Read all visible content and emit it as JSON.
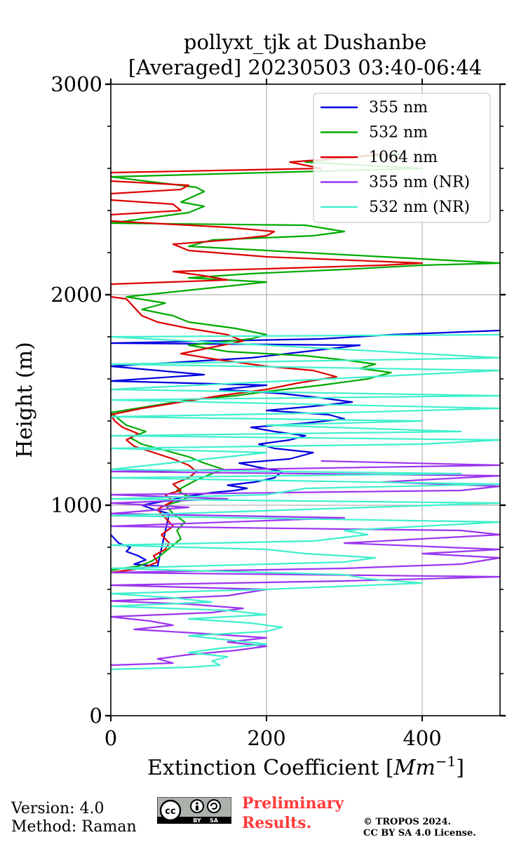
{
  "chart_data": {
    "type": "line",
    "title_line1": "pollyxt_tjk at Dushanbe",
    "title_line2": "[Averaged] 20230503 03:40-06:44",
    "xlabel": "Extinction Coefficient [",
    "xlabel_unit": "Mm",
    "xlabel_exp": "−1",
    "xlabel_end": "]",
    "ylabel": "Height (m)",
    "xlim": [
      0,
      500
    ],
    "ylim": [
      0,
      3000
    ],
    "x_ticks": [
      0,
      200,
      400
    ],
    "x_tick_labels": [
      "0",
      "200",
      "400"
    ],
    "y_ticks": [
      0,
      1000,
      2000,
      3000
    ],
    "y_tick_labels": [
      "0",
      "1000",
      "2000",
      "3000"
    ],
    "grid": true,
    "legend_position": "top-right",
    "series": [
      {
        "name": "355 nm",
        "color": "#0000e0",
        "points": [
          [
            0,
            860
          ],
          [
            10,
            820
          ],
          [
            25,
            800
          ],
          [
            20,
            780
          ],
          [
            35,
            760
          ],
          [
            45,
            740
          ],
          [
            30,
            720
          ],
          [
            60,
            710
          ],
          [
            75,
            960
          ],
          [
            55,
            980
          ],
          [
            40,
            1000
          ],
          [
            70,
            1020
          ],
          [
            95,
            1040
          ],
          [
            130,
            1060
          ],
          [
            160,
            1070
          ],
          [
            175,
            1080
          ],
          [
            150,
            1095
          ],
          [
            185,
            1110
          ],
          [
            210,
            1130
          ],
          [
            220,
            1160
          ],
          [
            190,
            1180
          ],
          [
            165,
            1200
          ],
          [
            230,
            1220
          ],
          [
            260,
            1250
          ],
          [
            210,
            1270
          ],
          [
            190,
            1290
          ],
          [
            230,
            1310
          ],
          [
            250,
            1330
          ],
          [
            210,
            1350
          ],
          [
            180,
            1370
          ],
          [
            250,
            1390
          ],
          [
            300,
            1410
          ],
          [
            280,
            1430
          ],
          [
            200,
            1450
          ],
          [
            260,
            1470
          ],
          [
            310,
            1490
          ],
          [
            270,
            1510
          ],
          [
            220,
            1530
          ],
          [
            140,
            1550
          ],
          [
            200,
            1570
          ],
          [
            0,
            1590
          ],
          [
            120,
            1620
          ],
          [
            0,
            1660
          ],
          [
            180,
            1700
          ],
          [
            250,
            1730
          ],
          [
            320,
            1760
          ],
          [
            0,
            1770
          ],
          [
            270,
            1790
          ],
          [
            360,
            1810
          ],
          [
            500,
            1830
          ]
        ]
      },
      {
        "name": "532 nm",
        "color": "#00aa00",
        "points": [
          [
            0,
            690
          ],
          [
            15,
            700
          ],
          [
            35,
            710
          ],
          [
            50,
            730
          ],
          [
            60,
            750
          ],
          [
            70,
            780
          ],
          [
            80,
            810
          ],
          [
            90,
            840
          ],
          [
            85,
            880
          ],
          [
            95,
            920
          ],
          [
            80,
            960
          ],
          [
            70,
            1000
          ],
          [
            90,
            1020
          ],
          [
            100,
            1040
          ],
          [
            85,
            1070
          ],
          [
            95,
            1090
          ],
          [
            110,
            1120
          ],
          [
            130,
            1150
          ],
          [
            145,
            1170
          ],
          [
            120,
            1200
          ],
          [
            100,
            1230
          ],
          [
            70,
            1260
          ],
          [
            40,
            1290
          ],
          [
            25,
            1320
          ],
          [
            45,
            1350
          ],
          [
            20,
            1380
          ],
          [
            10,
            1410
          ],
          [
            0,
            1440
          ],
          [
            50,
            1470
          ],
          [
            100,
            1500
          ],
          [
            160,
            1520
          ],
          [
            200,
            1540
          ],
          [
            270,
            1570
          ],
          [
            330,
            1600
          ],
          [
            360,
            1630
          ],
          [
            320,
            1650
          ],
          [
            340,
            1670
          ],
          [
            300,
            1690
          ],
          [
            250,
            1710
          ],
          [
            150,
            1730
          ],
          [
            100,
            1760
          ],
          [
            180,
            1790
          ],
          [
            200,
            1810
          ],
          [
            160,
            1840
          ],
          [
            100,
            1870
          ],
          [
            80,
            1900
          ],
          [
            40,
            1930
          ],
          [
            70,
            1960
          ],
          [
            20,
            1990
          ],
          [
            200,
            2060
          ],
          [
            100,
            2080
          ],
          [
            180,
            2100
          ],
          [
            300,
            2120
          ],
          [
            400,
            2140
          ],
          [
            500,
            2150
          ],
          [
            350,
            2180
          ],
          [
            200,
            2210
          ],
          [
            100,
            2230
          ],
          [
            130,
            2260
          ],
          [
            260,
            2280
          ],
          [
            300,
            2300
          ],
          [
            250,
            2330
          ],
          [
            0,
            2340
          ],
          [
            100,
            2390
          ],
          [
            120,
            2420
          ],
          [
            90,
            2440
          ],
          [
            120,
            2490
          ],
          [
            110,
            2510
          ],
          [
            0,
            2560
          ],
          [
            400,
            2600
          ],
          [
            250,
            2630
          ],
          [
            300,
            2650
          ],
          [
            380,
            2670
          ]
        ]
      },
      {
        "name": "1064 nm",
        "color": "#dd0000",
        "points": [
          [
            0,
            680
          ],
          [
            20,
            690
          ],
          [
            40,
            700
          ],
          [
            60,
            730
          ],
          [
            55,
            760
          ],
          [
            70,
            790
          ],
          [
            75,
            820
          ],
          [
            65,
            860
          ],
          [
            80,
            900
          ],
          [
            70,
            940
          ],
          [
            60,
            980
          ],
          [
            80,
            1020
          ],
          [
            70,
            1050
          ],
          [
            90,
            1070
          ],
          [
            80,
            1100
          ],
          [
            100,
            1130
          ],
          [
            110,
            1160
          ],
          [
            100,
            1190
          ],
          [
            80,
            1220
          ],
          [
            55,
            1250
          ],
          [
            30,
            1280
          ],
          [
            20,
            1310
          ],
          [
            35,
            1340
          ],
          [
            15,
            1370
          ],
          [
            5,
            1400
          ],
          [
            0,
            1430
          ],
          [
            40,
            1460
          ],
          [
            90,
            1490
          ],
          [
            140,
            1520
          ],
          [
            200,
            1550
          ],
          [
            240,
            1580
          ],
          [
            290,
            1610
          ],
          [
            260,
            1640
          ],
          [
            200,
            1660
          ],
          [
            140,
            1690
          ],
          [
            90,
            1720
          ],
          [
            130,
            1750
          ],
          [
            170,
            1780
          ],
          [
            150,
            1810
          ],
          [
            100,
            1840
          ],
          [
            60,
            1870
          ],
          [
            40,
            1900
          ],
          [
            30,
            1940
          ],
          [
            20,
            1980
          ],
          [
            0,
            1990
          ],
          [
            0,
            2050
          ],
          [
            150,
            2070
          ],
          [
            120,
            2090
          ],
          [
            80,
            2110
          ],
          [
            350,
            2140
          ],
          [
            400,
            2150
          ],
          [
            200,
            2180
          ],
          [
            100,
            2210
          ],
          [
            80,
            2240
          ],
          [
            150,
            2260
          ],
          [
            200,
            2280
          ],
          [
            210,
            2300
          ],
          [
            150,
            2320
          ],
          [
            0,
            2350
          ],
          [
            0,
            2380
          ],
          [
            90,
            2400
          ],
          [
            80,
            2430
          ],
          [
            0,
            2450
          ],
          [
            0,
            2480
          ],
          [
            90,
            2500
          ],
          [
            100,
            2520
          ],
          [
            0,
            2540
          ],
          [
            0,
            2580
          ],
          [
            270,
            2600
          ],
          [
            230,
            2630
          ],
          [
            300,
            2650
          ],
          [
            350,
            2670
          ]
        ]
      },
      {
        "name": "355 nm (NR)",
        "color": "#9b35f0",
        "points": [
          [
            0,
            240
          ],
          [
            80,
            250
          ],
          [
            60,
            270
          ],
          [
            100,
            290
          ],
          [
            160,
            310
          ],
          [
            200,
            330
          ],
          [
            150,
            350
          ],
          [
            200,
            370
          ],
          [
            120,
            390
          ],
          [
            30,
            410
          ],
          [
            80,
            430
          ],
          [
            50,
            450
          ],
          [
            0,
            470
          ],
          [
            130,
            490
          ],
          [
            170,
            510
          ],
          [
            100,
            530
          ],
          [
            0,
            545
          ],
          [
            150,
            570
          ],
          [
            200,
            600
          ],
          [
            0,
            620
          ],
          [
            300,
            640
          ],
          [
            500,
            660
          ],
          [
            0,
            680
          ],
          [
            300,
            700
          ],
          [
            450,
            720
          ],
          [
            500,
            750
          ],
          [
            400,
            770
          ],
          [
            500,
            790
          ],
          [
            300,
            820
          ],
          [
            500,
            860
          ],
          [
            450,
            880
          ],
          [
            0,
            900
          ],
          [
            300,
            940
          ],
          [
            0,
            960
          ],
          [
            100,
            990
          ],
          [
            0,
            1010
          ],
          [
            150,
            1030
          ],
          [
            0,
            1050
          ],
          [
            450,
            1070
          ],
          [
            500,
            1090
          ],
          [
            350,
            1110
          ],
          [
            500,
            1140
          ],
          [
            0,
            1160
          ],
          [
            500,
            1190
          ],
          [
            270,
            1210
          ]
        ]
      },
      {
        "name": "532 nm (NR)",
        "color": "#40f0cc",
        "points": [
          [
            0,
            220
          ],
          [
            100,
            230
          ],
          [
            140,
            240
          ],
          [
            130,
            260
          ],
          [
            150,
            280
          ],
          [
            100,
            300
          ],
          [
            140,
            320
          ],
          [
            200,
            340
          ],
          [
            150,
            360
          ],
          [
            100,
            380
          ],
          [
            200,
            400
          ],
          [
            220,
            420
          ],
          [
            180,
            440
          ],
          [
            100,
            460
          ],
          [
            200,
            480
          ],
          [
            150,
            500
          ],
          [
            0,
            520
          ],
          [
            130,
            540
          ],
          [
            80,
            560
          ],
          [
            0,
            580
          ],
          [
            200,
            600
          ],
          [
            400,
            630
          ],
          [
            330,
            650
          ],
          [
            300,
            670
          ],
          [
            0,
            700
          ],
          [
            300,
            730
          ],
          [
            340,
            750
          ],
          [
            250,
            770
          ],
          [
            200,
            790
          ],
          [
            0,
            810
          ],
          [
            260,
            830
          ],
          [
            330,
            860
          ],
          [
            300,
            880
          ],
          [
            400,
            900
          ],
          [
            500,
            920
          ],
          [
            0,
            950
          ],
          [
            250,
            980
          ],
          [
            500,
            1010
          ],
          [
            0,
            1030
          ],
          [
            200,
            1050
          ],
          [
            250,
            1080
          ],
          [
            500,
            1100
          ],
          [
            0,
            1130
          ],
          [
            450,
            1150
          ],
          [
            0,
            1170
          ],
          [
            200,
            1250
          ],
          [
            0,
            1270
          ],
          [
            400,
            1290
          ],
          [
            500,
            1310
          ],
          [
            0,
            1330
          ],
          [
            450,
            1350
          ],
          [
            200,
            1380
          ],
          [
            400,
            1400
          ],
          [
            0,
            1420
          ],
          [
            300,
            1440
          ],
          [
            500,
            1460
          ],
          [
            0,
            1500
          ],
          [
            500,
            1520
          ],
          [
            0,
            1550
          ],
          [
            500,
            1640
          ],
          [
            0,
            1670
          ],
          [
            500,
            1700
          ],
          [
            0,
            1800
          ],
          [
            500,
            1810
          ]
        ]
      }
    ]
  },
  "footer": {
    "version": "Version: 4.0",
    "method": "Method: Raman",
    "preliminary_line1": "Preliminary",
    "preliminary_line2": "Results.",
    "copyright_line1": "© TROPOS 2024.",
    "copyright_line2": "CC BY SA 4.0 License.",
    "cc_badge_cc": "cc",
    "cc_badge_by": "BY",
    "cc_badge_sa": "SA"
  }
}
